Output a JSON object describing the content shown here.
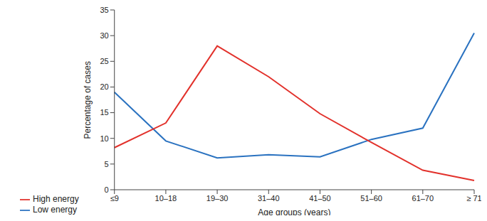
{
  "chart_data": {
    "type": "line",
    "x_label": "Age groups (years)",
    "y_label": "Percentage of cases",
    "categories": [
      "≤9",
      "10–18",
      "19–30",
      "31–40",
      "41–50",
      "51–60",
      "61–70",
      "≥ 71"
    ],
    "series": [
      {
        "name": "Low energy",
        "color": "#2a72c0",
        "values": [
          19,
          9.5,
          6.2,
          6.8,
          6.4,
          9.8,
          12,
          30.5
        ]
      },
      {
        "name": "High energy",
        "color": "#e2312b",
        "values": [
          8.2,
          13,
          28,
          22,
          14.8,
          9.2,
          3.8,
          1.8
        ]
      }
    ],
    "ylim": [
      0,
      35
    ],
    "yticks": [
      0,
      5,
      10,
      15,
      20,
      25,
      30,
      35
    ],
    "grid": false,
    "legend": "lower left"
  }
}
